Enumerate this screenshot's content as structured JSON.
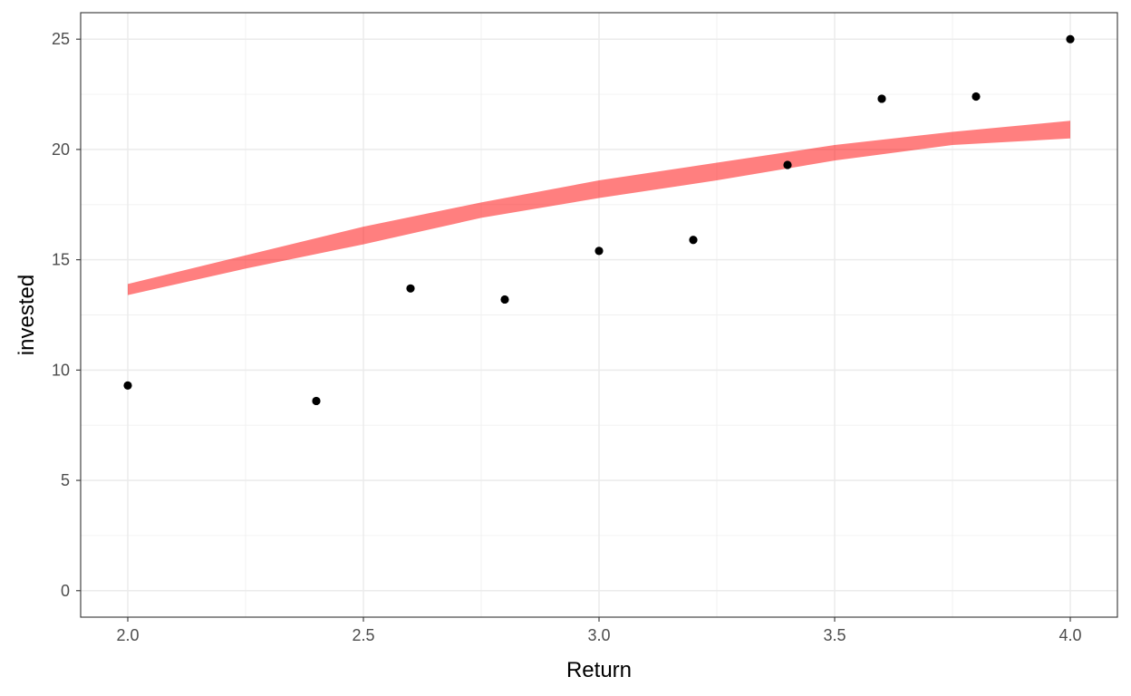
{
  "chart_data": {
    "type": "scatter",
    "title": "",
    "xlabel": "Return",
    "ylabel": "invested",
    "xlim": [
      1.9,
      4.1
    ],
    "ylim": [
      -1.2,
      26.2
    ],
    "x_ticks": [
      2.0,
      2.5,
      3.0,
      3.5,
      4.0
    ],
    "x_tick_labels": [
      "2.0",
      "2.5",
      "3.0",
      "3.5",
      "4.0"
    ],
    "y_ticks": [
      0,
      5,
      10,
      15,
      20,
      25
    ],
    "y_tick_labels": [
      "0",
      "5",
      "10",
      "15",
      "20",
      "25"
    ],
    "grid": true,
    "points": {
      "x": [
        2.0,
        2.4,
        2.6,
        2.8,
        3.0,
        3.2,
        3.4,
        3.6,
        3.8,
        4.0
      ],
      "y": [
        9.3,
        8.6,
        13.7,
        13.2,
        15.4,
        15.9,
        19.3,
        22.3,
        22.4,
        25.0
      ],
      "color": "#000000"
    },
    "band": {
      "x": [
        2.0,
        2.25,
        2.5,
        2.75,
        3.0,
        3.25,
        3.5,
        3.75,
        4.0
      ],
      "lower": [
        13.4,
        14.6,
        15.7,
        16.9,
        17.8,
        18.6,
        19.5,
        20.2,
        20.5
      ],
      "upper": [
        13.9,
        15.2,
        16.5,
        17.6,
        18.6,
        19.4,
        20.2,
        20.8,
        21.3
      ],
      "color": "#ff0000",
      "opacity": 0.5
    }
  }
}
